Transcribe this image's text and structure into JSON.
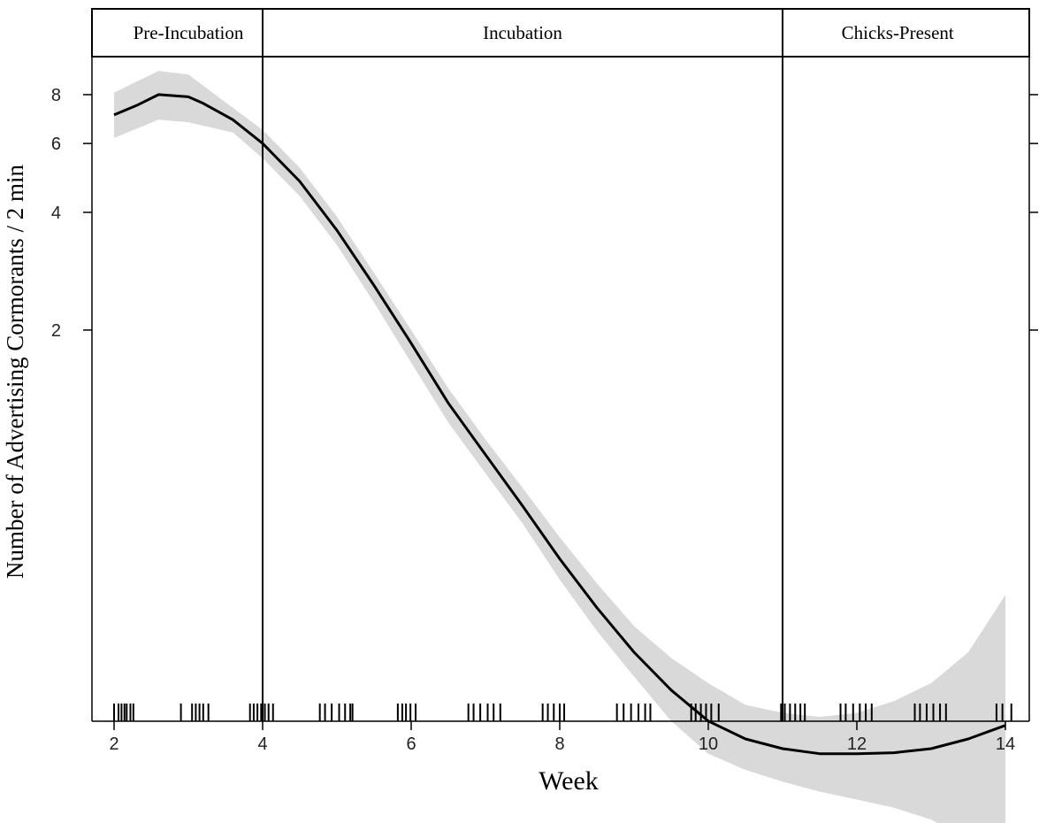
{
  "chart_data": {
    "type": "line",
    "title": "",
    "xlabel": "Week",
    "ylabel": "Number of Advertising Cormorants / 2 min",
    "xlim": [
      2,
      14
    ],
    "ylim_log": [
      0.23,
      9.8
    ],
    "y_scale": "log",
    "x_ticks": [
      "2",
      "4",
      "6",
      "8",
      "10",
      "12",
      "14"
    ],
    "y_ticks": [
      "2",
      "4",
      "6",
      "8"
    ],
    "grid": false,
    "phases": [
      {
        "label": "Pre-Incubation",
        "start": 2,
        "end": 4
      },
      {
        "label": "Incubation",
        "start": 4,
        "end": 11
      },
      {
        "label": "Chicks-Present",
        "start": 11,
        "end": 14.1
      }
    ],
    "series": [
      {
        "x": [
          2,
          2.3,
          2.6,
          3.0,
          3.2,
          3.6,
          4.0,
          4.5,
          5.0,
          5.5,
          6.0,
          6.5,
          7.0,
          7.5,
          8.0,
          8.5,
          9.0,
          9.5,
          10.0,
          10.5,
          11.0,
          11.5,
          12.0,
          12.5,
          13.0,
          13.5,
          14.0
        ],
        "y": [
          7.1,
          7.5,
          8.0,
          7.9,
          7.6,
          6.9,
          6.0,
          4.8,
          3.6,
          2.6,
          1.85,
          1.3,
          0.96,
          0.71,
          0.52,
          0.39,
          0.3,
          0.24,
          0.2,
          0.18,
          0.17,
          0.165,
          0.165,
          0.166,
          0.17,
          0.18,
          0.195
        ]
      }
    ],
    "confidence_band": {
      "x": [
        2,
        2.6,
        3.0,
        3.6,
        4.0,
        4.5,
        5.0,
        5.5,
        6.0,
        6.5,
        7.0,
        7.5,
        8.0,
        8.5,
        9.0,
        9.5,
        10.0,
        10.5,
        11.0,
        11.5,
        12.0,
        12.5,
        13.0,
        13.5,
        14.0
      ],
      "upper": [
        8.1,
        9.2,
        9.0,
        7.4,
        6.5,
        5.2,
        3.9,
        2.8,
        2.0,
        1.42,
        1.05,
        0.79,
        0.59,
        0.45,
        0.35,
        0.29,
        0.25,
        0.22,
        0.21,
        0.205,
        0.21,
        0.225,
        0.25,
        0.3,
        0.42
      ],
      "lower": [
        6.2,
        6.9,
        6.8,
        6.4,
        5.5,
        4.4,
        3.3,
        2.35,
        1.65,
        1.16,
        0.86,
        0.64,
        0.46,
        0.34,
        0.26,
        0.2,
        0.165,
        0.15,
        0.14,
        0.132,
        0.126,
        0.12,
        0.112,
        0.1,
        0.088
      ]
    },
    "rug_x": [
      2.0,
      2.06,
      2.1,
      2.14,
      2.17,
      2.22,
      2.26,
      2.9,
      3.05,
      3.1,
      3.15,
      3.2,
      3.27,
      3.83,
      3.88,
      3.93,
      3.98,
      4.03,
      4.08,
      4.14,
      4.77,
      4.84,
      4.93,
      5.03,
      5.11,
      5.18,
      5.21,
      5.82,
      5.88,
      5.93,
      5.99,
      6.06,
      6.77,
      6.84,
      6.93,
      7.03,
      7.11,
      7.2,
      7.77,
      7.84,
      7.92,
      8.0,
      8.06,
      8.77,
      8.86,
      8.96,
      9.06,
      9.15,
      9.22,
      9.77,
      9.83,
      9.9,
      9.97,
      10.04,
      10.14,
      10.98,
      11.03,
      11.1,
      11.17,
      11.24,
      11.3,
      11.78,
      11.85,
      11.95,
      12.04,
      12.12,
      12.2,
      12.78,
      12.85,
      12.94,
      13.03,
      13.12,
      13.2,
      13.88,
      13.96,
      14.08
    ]
  }
}
